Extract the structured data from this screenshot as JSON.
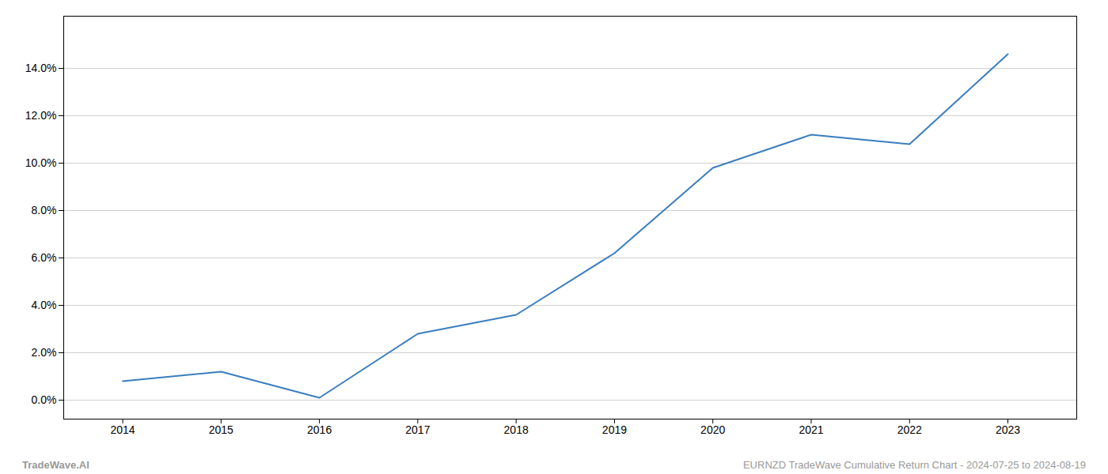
{
  "chart_data": {
    "type": "line",
    "x": [
      2014,
      2015,
      2016,
      2017,
      2018,
      2019,
      2020,
      2021,
      2022,
      2023
    ],
    "values": [
      0.008,
      0.012,
      0.001,
      0.028,
      0.036,
      0.062,
      0.098,
      0.112,
      0.108,
      0.146
    ],
    "color": "#3a7ebf",
    "xlim": [
      2013.4,
      2023.7
    ],
    "xticks": [
      2014,
      2015,
      2016,
      2017,
      2018,
      2019,
      2020,
      2021,
      2022,
      2023
    ],
    "ylim": [
      -0.008,
      0.162
    ],
    "yticks": [
      {
        "value": 0.0,
        "label": "0.0%"
      },
      {
        "value": 0.02,
        "label": "2.0%"
      },
      {
        "value": 0.04,
        "label": "4.0%"
      },
      {
        "value": 0.06,
        "label": "6.0%"
      },
      {
        "value": 0.08,
        "label": "8.0%"
      },
      {
        "value": 0.1,
        "label": "10.0%"
      },
      {
        "value": 0.12,
        "label": "12.0%"
      },
      {
        "value": 0.14,
        "label": "14.0%"
      }
    ],
    "grid": "y",
    "annotations": [
      "TradeWave.AI",
      "EURNZD TradeWave Cumulative Return Chart - 2024-07-25 to 2024-08-19"
    ]
  }
}
